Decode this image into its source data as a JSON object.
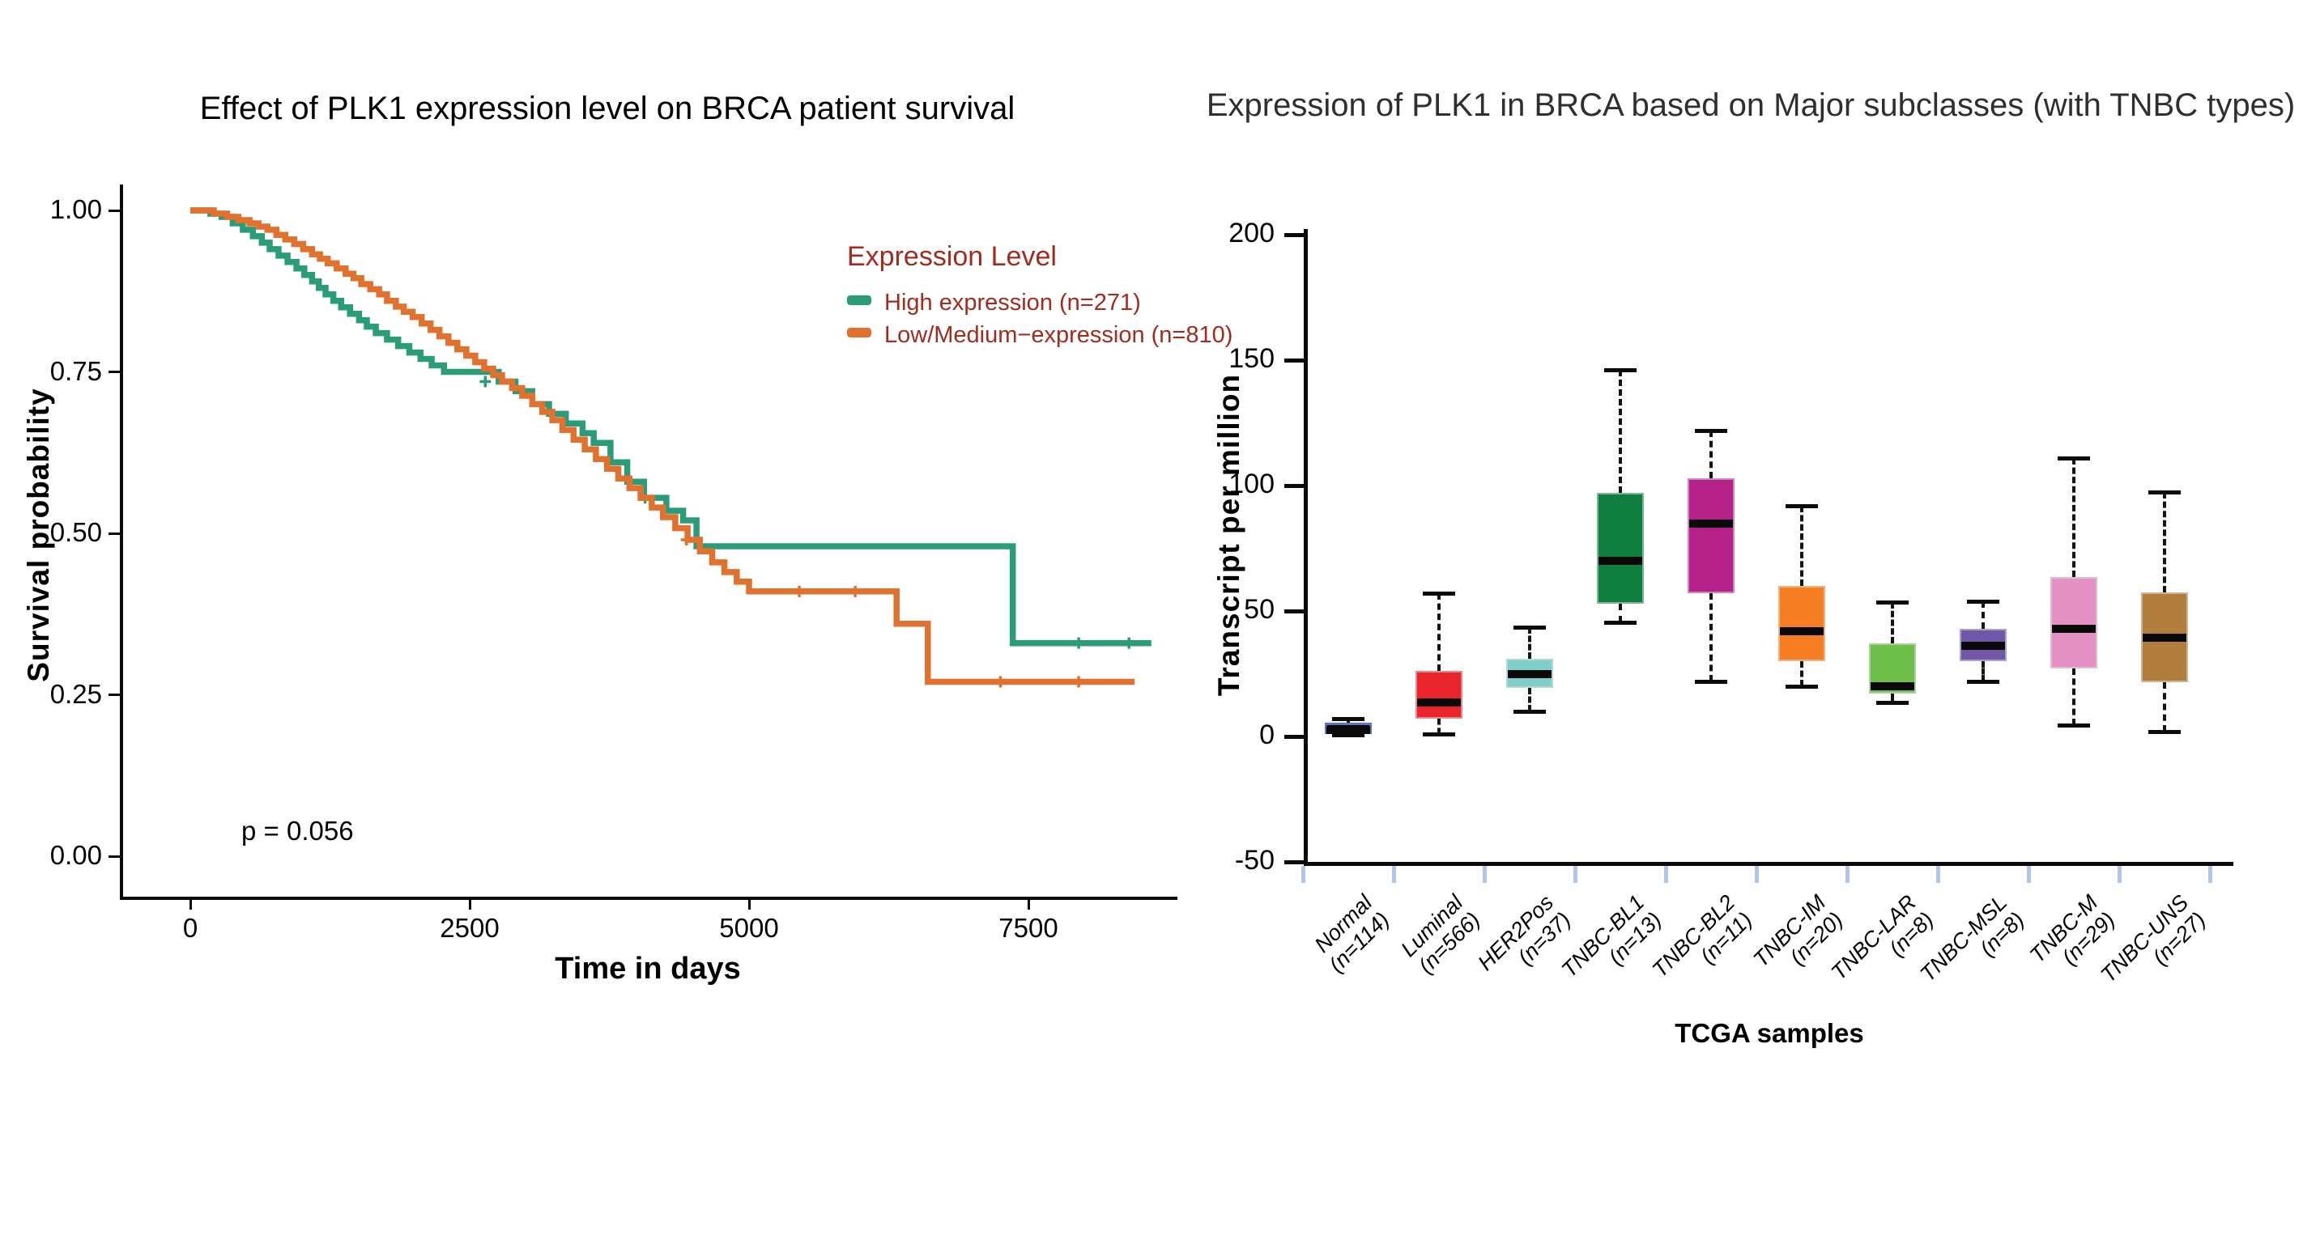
{
  "figure": {
    "background": "#ffffff"
  },
  "chart_data": [
    {
      "type": "line",
      "subtype": "kaplan-meier-step",
      "title": "Effect of PLK1 expression level on BRCA patient survival",
      "xlabel": "Time in days",
      "ylabel": "Survival probability",
      "annotation": "p = 0.056",
      "xlim": [
        0,
        8800
      ],
      "ylim": [
        0,
        1
      ],
      "x_ticks": [
        "0",
        "2500",
        "5000",
        "7500"
      ],
      "y_ticks": [
        "1.00",
        "0.75",
        "0.50",
        "0.25",
        "0.00"
      ],
      "grid": false,
      "legend": {
        "title": "Expression Level",
        "position": "upper-right",
        "text_color": "#a02c20"
      },
      "series": [
        {
          "name": "High expression (n=271)",
          "color": "#2a9d78",
          "end": 8600,
          "points": [
            [
              0,
              1.0
            ],
            [
              180,
              0.995
            ],
            [
              280,
              0.99
            ],
            [
              380,
              0.98
            ],
            [
              470,
              0.97
            ],
            [
              560,
              0.96
            ],
            [
              640,
              0.95
            ],
            [
              710,
              0.94
            ],
            [
              790,
              0.93
            ],
            [
              870,
              0.92
            ],
            [
              950,
              0.91
            ],
            [
              1020,
              0.9
            ],
            [
              1090,
              0.89
            ],
            [
              1150,
              0.88
            ],
            [
              1210,
              0.87
            ],
            [
              1280,
              0.86
            ],
            [
              1350,
              0.85
            ],
            [
              1430,
              0.84
            ],
            [
              1510,
              0.83
            ],
            [
              1580,
              0.82
            ],
            [
              1660,
              0.81
            ],
            [
              1760,
              0.8
            ],
            [
              1860,
              0.79
            ],
            [
              1960,
              0.78
            ],
            [
              2060,
              0.77
            ],
            [
              2160,
              0.76
            ],
            [
              2270,
              0.75
            ],
            [
              2760,
              0.735
            ],
            [
              2910,
              0.72
            ],
            [
              3060,
              0.7
            ],
            [
              3210,
              0.685
            ],
            [
              3360,
              0.67
            ],
            [
              3510,
              0.655
            ],
            [
              3610,
              0.64
            ],
            [
              3760,
              0.61
            ],
            [
              3910,
              0.58
            ],
            [
              4060,
              0.555
            ],
            [
              4260,
              0.535
            ],
            [
              4410,
              0.52
            ],
            [
              4530,
              0.48
            ],
            [
              7360,
              0.33
            ]
          ],
          "censors": [
            [
              2640,
              0.735
            ],
            [
              4070,
              0.555
            ],
            [
              7950,
              0.33
            ],
            [
              8400,
              0.33
            ]
          ]
        },
        {
          "name": "Low/Medium−expression (n=810)",
          "color": "#e0712f",
          "end": 8450,
          "points": [
            [
              0,
              1.0
            ],
            [
              210,
              0.995
            ],
            [
              330,
              0.99
            ],
            [
              430,
              0.985
            ],
            [
              530,
              0.98
            ],
            [
              610,
              0.975
            ],
            [
              690,
              0.97
            ],
            [
              770,
              0.962
            ],
            [
              850,
              0.955
            ],
            [
              930,
              0.948
            ],
            [
              1010,
              0.94
            ],
            [
              1090,
              0.932
            ],
            [
              1160,
              0.925
            ],
            [
              1230,
              0.918
            ],
            [
              1310,
              0.91
            ],
            [
              1390,
              0.902
            ],
            [
              1460,
              0.895
            ],
            [
              1530,
              0.886
            ],
            [
              1610,
              0.878
            ],
            [
              1690,
              0.87
            ],
            [
              1760,
              0.86
            ],
            [
              1840,
              0.851
            ],
            [
              1910,
              0.843
            ],
            [
              1990,
              0.835
            ],
            [
              2070,
              0.825
            ],
            [
              2150,
              0.815
            ],
            [
              2230,
              0.805
            ],
            [
              2310,
              0.795
            ],
            [
              2390,
              0.785
            ],
            [
              2470,
              0.775
            ],
            [
              2550,
              0.765
            ],
            [
              2630,
              0.755
            ],
            [
              2710,
              0.745
            ],
            [
              2790,
              0.735
            ],
            [
              2880,
              0.725
            ],
            [
              2970,
              0.713
            ],
            [
              3060,
              0.7
            ],
            [
              3150,
              0.688
            ],
            [
              3240,
              0.675
            ],
            [
              3330,
              0.66
            ],
            [
              3430,
              0.645
            ],
            [
              3530,
              0.63
            ],
            [
              3630,
              0.615
            ],
            [
              3730,
              0.6
            ],
            [
              3830,
              0.585
            ],
            [
              3930,
              0.57
            ],
            [
              4030,
              0.555
            ],
            [
              4130,
              0.54
            ],
            [
              4230,
              0.525
            ],
            [
              4340,
              0.508
            ],
            [
              4450,
              0.49
            ],
            [
              4560,
              0.472
            ],
            [
              4670,
              0.455
            ],
            [
              4780,
              0.44
            ],
            [
              4890,
              0.425
            ],
            [
              5000,
              0.41
            ],
            [
              6320,
              0.36
            ],
            [
              6600,
              0.27
            ]
          ],
          "censors": [
            [
              4440,
              0.49
            ],
            [
              5450,
              0.41
            ],
            [
              5950,
              0.41
            ],
            [
              7250,
              0.27
            ],
            [
              7950,
              0.27
            ]
          ]
        }
      ]
    },
    {
      "type": "box",
      "title": "Expression of PLK1 in BRCA based on Major subclasses (with TNBC types)",
      "xlabel": "TCGA samples",
      "ylabel": "Transcript per million",
      "ylim": [
        -50,
        200
      ],
      "y_ticks": [
        "200",
        "150",
        "100",
        "50",
        "0",
        "-50"
      ],
      "grid": false,
      "x_tick_color": "#aec6e8",
      "categories": [
        {
          "label": "Normal",
          "n": "(n=114)",
          "color": "#0b0b10",
          "border": "#6173c4",
          "whisker_low": 0.5,
          "q1": 1,
          "median": 2.5,
          "q3": 5.5,
          "whisker_high": 7
        },
        {
          "label": "Luminal",
          "n": "(n=566)",
          "color": "#e9242b",
          "whisker_low": 1,
          "q1": 7,
          "median": 13.5,
          "q3": 26,
          "whisker_high": 57
        },
        {
          "label": "HER2Pos",
          "n": "(n=37)",
          "color": "#80cfca",
          "whisker_low": 10,
          "q1": 19.5,
          "median": 25,
          "q3": 31,
          "whisker_high": 43.5
        },
        {
          "label": "TNBC-BL1",
          "n": "(n=13)",
          "color": "#107e3e",
          "whisker_low": 45.5,
          "q1": 53,
          "median": 70,
          "q3": 97,
          "whisker_high": 146
        },
        {
          "label": "TNBC-BL2",
          "n": "(n=11)",
          "color": "#b52189",
          "whisker_low": 22,
          "q1": 57,
          "median": 85,
          "q3": 103,
          "whisker_high": 122
        },
        {
          "label": "TNBC-IM",
          "n": "(n=20)",
          "color": "#f57d22",
          "whisker_low": 20,
          "q1": 30,
          "median": 42,
          "q3": 60,
          "whisker_high": 92
        },
        {
          "label": "TNBC-LAR",
          "n": "(n=8)",
          "color": "#6dbf4a",
          "whisker_low": 13.5,
          "q1": 17,
          "median": 20,
          "q3": 37,
          "whisker_high": 53.5
        },
        {
          "label": "TNBC-MSL",
          "n": "(n=8)",
          "color": "#7157a8",
          "whisker_low": 22,
          "q1": 30,
          "median": 36,
          "q3": 43,
          "whisker_high": 54
        },
        {
          "label": "TNBC-M",
          "n": "(n=29)",
          "color": "#e492c6",
          "whisker_low": 4.5,
          "q1": 27,
          "median": 43,
          "q3": 63.5,
          "whisker_high": 111
        },
        {
          "label": "TNBC-UNS",
          "n": "(n=27)",
          "color": "#b27e3e",
          "whisker_low": 2,
          "q1": 21.5,
          "median": 39.5,
          "q3": 57.5,
          "whisker_high": 97.5
        }
      ]
    }
  ]
}
